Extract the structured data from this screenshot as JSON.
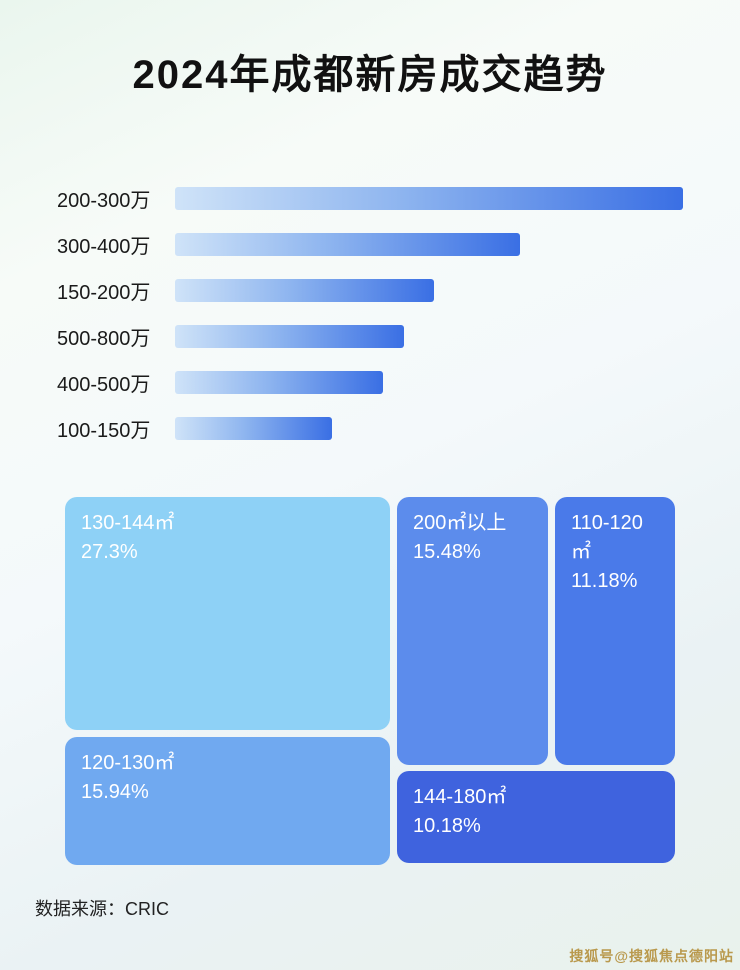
{
  "page": {
    "title": "2024年成都新房成交趋势",
    "source": "数据来源：CRIC",
    "watermark": "搜狐号@搜狐焦点德阳站"
  },
  "colors": {
    "bar_gradient_start": "#cfe3f8",
    "bar_gradient_end": "#3a6fe4"
  },
  "chart_data": [
    {
      "type": "bar",
      "orientation": "horizontal",
      "title": "",
      "xlabel": "",
      "ylabel": "",
      "categories": [
        "200-300万",
        "300-400万",
        "150-200万",
        "500-800万",
        "400-500万",
        "100-150万"
      ],
      "values": [
        100,
        68,
        51,
        45,
        41,
        31
      ],
      "value_unit": "relative-bar-length-%",
      "grid": false,
      "legend": false
    },
    {
      "type": "treemap",
      "title": "",
      "items": [
        {
          "label": "130-144㎡",
          "value": 27.3,
          "display": "27.3%",
          "color": "#8ed1f6"
        },
        {
          "label": "200㎡以上",
          "value": 15.48,
          "display": "15.48%",
          "color": "#5c8cec"
        },
        {
          "label": "110-120㎡",
          "value": 11.18,
          "display": "11.18%",
          "color": "#4a7ae9"
        },
        {
          "label": "120-130㎡",
          "value": 15.94,
          "display": "15.94%",
          "color": "#70a9f0"
        },
        {
          "label": "144-180㎡",
          "value": 10.18,
          "display": "10.18%",
          "color": "#3f63de"
        }
      ]
    }
  ]
}
